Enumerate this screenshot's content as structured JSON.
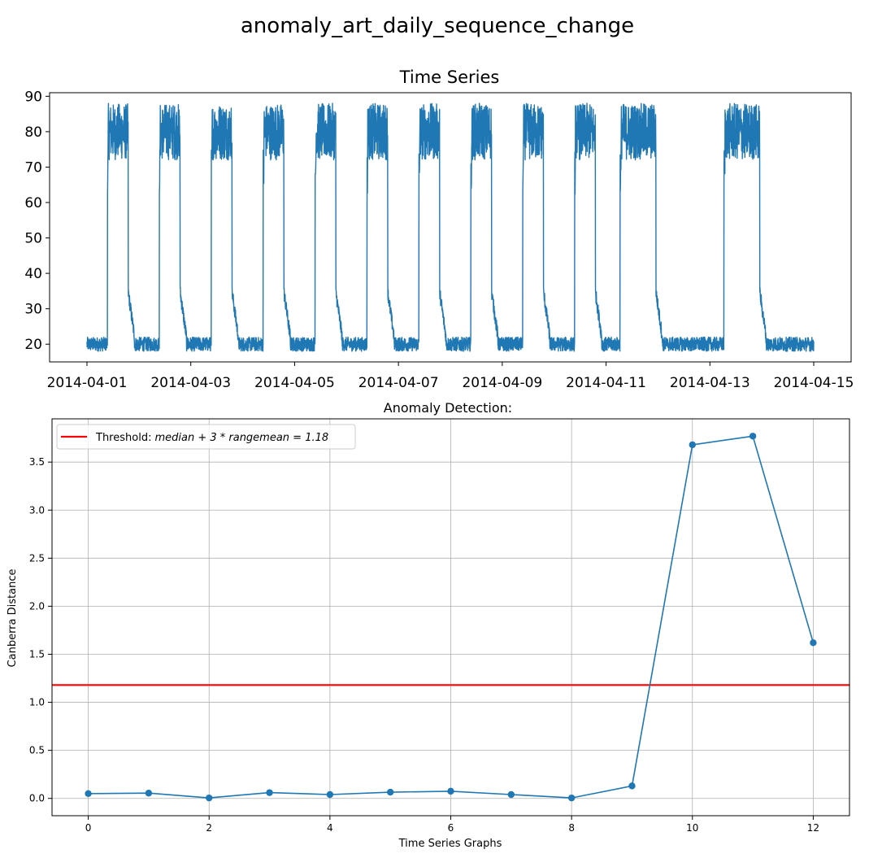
{
  "figure_title": "anomaly_art_daily_sequence_change",
  "chart_data": [
    {
      "type": "line",
      "title": "Time Series",
      "xlabel": "",
      "ylabel": "",
      "x_type": "date",
      "xlim": [
        "2014-04-01",
        "2014-04-15"
      ],
      "ylim": [
        15,
        91
      ],
      "x_ticks": [
        "2014-04-01",
        "2014-04-03",
        "2014-04-05",
        "2014-04-07",
        "2014-04-09",
        "2014-04-11",
        "2014-04-13",
        "2014-04-15"
      ],
      "y_ticks": [
        20,
        30,
        40,
        50,
        60,
        70,
        80,
        90
      ],
      "grid": false,
      "color": "#1f77b4",
      "baseline": {
        "low": 18,
        "high": 22
      },
      "daily_pattern": {
        "plateau_low": 72,
        "plateau_high": 88,
        "ramp_peak": 35
      },
      "active_periods": [
        {
          "start": "2014-04-01 09:30",
          "end": "2014-04-01 19:00"
        },
        {
          "start": "2014-04-02 09:30",
          "end": "2014-04-02 19:00"
        },
        {
          "start": "2014-04-03 09:30",
          "end": "2014-04-03 19:00"
        },
        {
          "start": "2014-04-04 09:30",
          "end": "2014-04-04 19:00"
        },
        {
          "start": "2014-04-05 09:30",
          "end": "2014-04-05 19:00"
        },
        {
          "start": "2014-04-06 09:30",
          "end": "2014-04-06 19:00"
        },
        {
          "start": "2014-04-07 09:30",
          "end": "2014-04-07 19:00"
        },
        {
          "start": "2014-04-08 09:30",
          "end": "2014-04-08 19:00"
        },
        {
          "start": "2014-04-09 09:30",
          "end": "2014-04-09 19:00"
        },
        {
          "start": "2014-04-10 09:30",
          "end": "2014-04-10 19:00"
        },
        {
          "start": "2014-04-11 06:30",
          "end": "2014-04-11 23:00"
        },
        {
          "start": "2014-04-13 06:30",
          "end": "2014-04-13 23:00"
        }
      ]
    },
    {
      "type": "line",
      "title": "Anomaly Detection:",
      "xlabel": "Time Series Graphs",
      "ylabel": "Canberra Distance",
      "xlim": [
        -0.6,
        12.6
      ],
      "ylim": [
        -0.18,
        3.95
      ],
      "x_ticks": [
        0,
        2,
        4,
        6,
        8,
        10,
        12
      ],
      "y_ticks": [
        "0.0",
        "0.5",
        "1.0",
        "1.5",
        "2.0",
        "2.5",
        "3.0",
        "3.5"
      ],
      "grid": true,
      "legend_position": "upper-left",
      "series": [
        {
          "color": "#1f77b4",
          "marker": "circle",
          "x": [
            0,
            1,
            2,
            3,
            4,
            5,
            6,
            7,
            8,
            9,
            10,
            11,
            12
          ],
          "y": [
            0.05,
            0.055,
            0.005,
            0.06,
            0.04,
            0.065,
            0.075,
            0.04,
            0.005,
            0.13,
            3.68,
            3.77,
            1.62
          ]
        }
      ],
      "threshold": {
        "value": 1.18,
        "color": "#ff0000",
        "label_prefix": "Threshold:",
        "label_math": "median + 3 * rangemean = 1.18"
      }
    }
  ]
}
